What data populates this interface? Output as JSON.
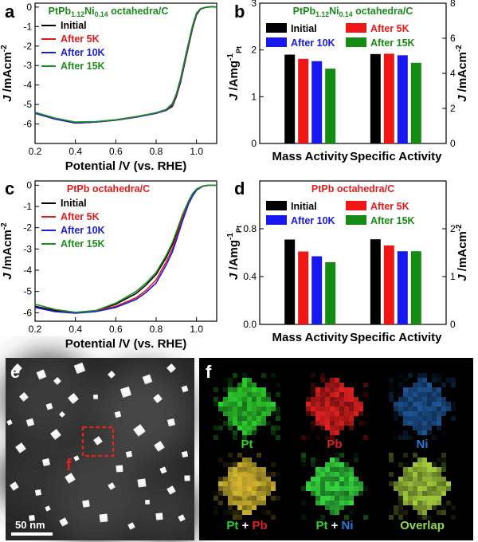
{
  "figure": {
    "panels": {
      "a": "a",
      "b": "b",
      "c": "c",
      "d": "d",
      "e": "e",
      "f": "f"
    }
  },
  "chart_data": [
    {
      "id": "a",
      "type": "line",
      "title": "PtPb1.12Ni0.14 octahedra/C",
      "title_parts": [
        "PtPb",
        "1.12",
        "Ni",
        "0.14",
        " octahedra/C"
      ],
      "title_color": "#1a8a1a",
      "xlabel": "Potential /V (vs. RHE)",
      "ylabel": "J /mAcm",
      "ylabel_sup": "-2",
      "xlim": [
        0.2,
        1.1
      ],
      "ylim": [
        -7,
        0.2
      ],
      "xticks": [
        0.2,
        0.4,
        0.6,
        0.8,
        1.0
      ],
      "xtick_labels": [
        "0.2",
        "0.4",
        "0.6",
        "0.8",
        "1.0"
      ],
      "yticks": [
        0,
        -1,
        -2,
        -3,
        -4,
        -5,
        -6
      ],
      "ytick_labels": [
        "0",
        "-1",
        "-2",
        "-3",
        "-4",
        "-5",
        "-6"
      ],
      "legend_placement": "top-left",
      "series": [
        {
          "name": "Initial",
          "color": "#000000",
          "x": [
            0.2,
            0.3,
            0.4,
            0.5,
            0.6,
            0.7,
            0.8,
            0.85,
            0.88,
            0.9,
            0.92,
            0.95,
            0.98,
            1.0,
            1.02,
            1.05,
            1.08,
            1.1
          ],
          "y": [
            -5.45,
            -5.75,
            -5.95,
            -5.9,
            -5.8,
            -5.65,
            -5.45,
            -5.3,
            -5.1,
            -4.6,
            -3.9,
            -2.5,
            -1.1,
            -0.4,
            -0.1,
            0.0,
            0.02,
            0.0
          ]
        },
        {
          "name": "After 5K",
          "color": "#e01b1b",
          "x": [
            0.2,
            0.3,
            0.4,
            0.5,
            0.6,
            0.7,
            0.8,
            0.85,
            0.88,
            0.9,
            0.92,
            0.95,
            0.98,
            1.0,
            1.02,
            1.05,
            1.08,
            1.1
          ],
          "y": [
            -5.45,
            -5.75,
            -5.95,
            -5.9,
            -5.8,
            -5.65,
            -5.45,
            -5.3,
            -5.05,
            -4.55,
            -3.85,
            -2.45,
            -1.05,
            -0.38,
            -0.1,
            0.0,
            0.02,
            0.0
          ]
        },
        {
          "name": "After 10K",
          "color": "#1c1cd6",
          "x": [
            0.2,
            0.3,
            0.4,
            0.5,
            0.6,
            0.7,
            0.8,
            0.85,
            0.88,
            0.9,
            0.92,
            0.95,
            0.98,
            1.0,
            1.02,
            1.05,
            1.08,
            1.1
          ],
          "y": [
            -5.45,
            -5.75,
            -5.95,
            -5.9,
            -5.8,
            -5.65,
            -5.45,
            -5.28,
            -5.0,
            -4.5,
            -3.8,
            -2.4,
            -1.0,
            -0.35,
            -0.09,
            0.0,
            0.02,
            0.0
          ]
        },
        {
          "name": "After 15K",
          "color": "#1e8f1e",
          "x": [
            0.2,
            0.3,
            0.4,
            0.5,
            0.6,
            0.7,
            0.8,
            0.85,
            0.88,
            0.9,
            0.92,
            0.95,
            0.98,
            1.0,
            1.02,
            1.05,
            1.08,
            1.1
          ],
          "y": [
            -5.4,
            -5.7,
            -5.9,
            -5.88,
            -5.78,
            -5.62,
            -5.42,
            -5.25,
            -4.95,
            -4.45,
            -3.7,
            -2.3,
            -0.95,
            -0.3,
            -0.08,
            0.0,
            0.02,
            0.0
          ]
        }
      ]
    },
    {
      "id": "b",
      "type": "bar",
      "title": "PtPb1.12Ni0.14 octahedra/C",
      "title_parts": [
        "PtPb",
        "1.12",
        "Ni",
        "0.14",
        " octahedra/C"
      ],
      "title_color": "#1a8a1a",
      "categories": [
        "Mass Activity",
        "Specific Activity"
      ],
      "ylabel_left": "J /Amg",
      "ylabel_left_sup": "-1",
      "ylabel_left_sub": "Pt",
      "ylabel_right": "J /mAcm",
      "ylabel_right_sup": "-2",
      "ylim_left": [
        0,
        3
      ],
      "ylim_right": [
        0,
        8
      ],
      "yticks_left": [
        0,
        1,
        2,
        3
      ],
      "ytick_labels_left": [
        "0",
        "1",
        "2",
        "3"
      ],
      "yticks_right": [
        0,
        2,
        4,
        6,
        8
      ],
      "ytick_labels_right": [
        "0",
        "2",
        "4",
        "6",
        "8"
      ],
      "legend_placement": "top",
      "series": [
        {
          "name": "Initial",
          "color": "#000000",
          "values": [
            1.9,
            5.1
          ],
          "axis": [
            "left",
            "right"
          ]
        },
        {
          "name": "After 5K",
          "color": "#f01616",
          "values": [
            1.81,
            5.12
          ],
          "axis": [
            "left",
            "right"
          ]
        },
        {
          "name": "After 10K",
          "color": "#1717f0",
          "values": [
            1.76,
            5.03
          ],
          "axis": [
            "left",
            "right"
          ]
        },
        {
          "name": "After 15K",
          "color": "#148c14",
          "values": [
            1.6,
            4.6
          ],
          "axis": [
            "left",
            "right"
          ]
        }
      ]
    },
    {
      "id": "c",
      "type": "line",
      "title": "PtPb octahedra/C",
      "title_parts": [
        "PtPb octahedra/C"
      ],
      "title_color": "#e01b1b",
      "xlabel": "Potential /V (vs. RHE)",
      "ylabel": "J /mAcm",
      "ylabel_sup": "-2",
      "xlim": [
        0.2,
        1.1
      ],
      "ylim": [
        -6.4,
        0.2
      ],
      "xticks": [
        0.2,
        0.4,
        0.6,
        0.8,
        1.0
      ],
      "xtick_labels": [
        "0.2",
        "0.4",
        "0.6",
        "0.8",
        "1.0"
      ],
      "yticks": [
        0,
        -1,
        -2,
        -3,
        -4,
        -5,
        -6
      ],
      "ytick_labels": [
        "0",
        "-1",
        "-2",
        "-3",
        "-4",
        "-5",
        "-6"
      ],
      "legend_placement": "top-left",
      "series": [
        {
          "name": "Initial",
          "color": "#000000",
          "x": [
            0.2,
            0.3,
            0.4,
            0.5,
            0.6,
            0.7,
            0.75,
            0.8,
            0.85,
            0.88,
            0.9,
            0.93,
            0.96,
            0.98,
            1.0,
            1.03,
            1.06,
            1.1
          ],
          "y": [
            -5.7,
            -5.9,
            -6.0,
            -5.9,
            -5.6,
            -5.1,
            -4.7,
            -4.2,
            -3.4,
            -2.8,
            -2.3,
            -1.5,
            -0.8,
            -0.45,
            -0.2,
            -0.05,
            0.0,
            0.0
          ]
        },
        {
          "name": "After 5K",
          "color": "#e01b1b",
          "x": [
            0.2,
            0.3,
            0.4,
            0.5,
            0.6,
            0.7,
            0.75,
            0.8,
            0.85,
            0.88,
            0.9,
            0.93,
            0.96,
            0.98,
            1.0,
            1.03,
            1.06,
            1.1
          ],
          "y": [
            -5.75,
            -5.95,
            -6.0,
            -5.92,
            -5.7,
            -5.3,
            -4.95,
            -4.45,
            -3.6,
            -3.0,
            -2.45,
            -1.6,
            -0.85,
            -0.5,
            -0.22,
            -0.05,
            0.0,
            0.0
          ]
        },
        {
          "name": "After 10K",
          "color": "#1c1cd6",
          "x": [
            0.2,
            0.3,
            0.4,
            0.5,
            0.6,
            0.7,
            0.75,
            0.8,
            0.85,
            0.88,
            0.9,
            0.93,
            0.96,
            0.98,
            1.0,
            1.03,
            1.06,
            1.1
          ],
          "y": [
            -5.75,
            -5.95,
            -6.02,
            -5.95,
            -5.75,
            -5.38,
            -5.05,
            -4.6,
            -3.75,
            -3.15,
            -2.6,
            -1.7,
            -0.9,
            -0.52,
            -0.23,
            -0.05,
            0.0,
            0.0
          ]
        },
        {
          "name": "After 15K",
          "color": "#1e8f1e",
          "x": [
            0.2,
            0.3,
            0.4,
            0.5,
            0.6,
            0.7,
            0.75,
            0.8,
            0.85,
            0.88,
            0.9,
            0.93,
            0.96,
            0.98,
            1.0,
            1.03,
            1.06,
            1.1
          ],
          "y": [
            -5.6,
            -5.85,
            -5.98,
            -5.9,
            -5.55,
            -5.0,
            -4.6,
            -4.1,
            -3.3,
            -2.7,
            -2.2,
            -1.4,
            -0.75,
            -0.4,
            -0.18,
            -0.04,
            0.0,
            0.0
          ]
        }
      ]
    },
    {
      "id": "d",
      "type": "bar",
      "title": "PtPb octahedra/C",
      "title_parts": [
        "PtPb octahedra/C"
      ],
      "title_color": "#e01b1b",
      "categories": [
        "Mass Activity",
        "Specific Activity"
      ],
      "ylabel_left": "J /Amg",
      "ylabel_left_sup": "-1",
      "ylabel_left_sub": "Pt",
      "ylabel_right": "J /mAcm",
      "ylabel_right_sup": "-2",
      "ylim_left": [
        0,
        1.2
      ],
      "ylim_right": [
        0,
        3
      ],
      "yticks_left": [
        0.0,
        0.4,
        0.8
      ],
      "ytick_labels_left": [
        "0.0",
        "0.4",
        "0.8"
      ],
      "yticks_right": [
        0,
        1,
        2
      ],
      "ytick_labels_right": [
        "0",
        "1",
        "2"
      ],
      "legend_placement": "top",
      "series": [
        {
          "name": "Initial",
          "color": "#000000",
          "values": [
            0.71,
            1.78
          ],
          "axis": [
            "left",
            "right"
          ]
        },
        {
          "name": "After 5K",
          "color": "#f01616",
          "values": [
            0.61,
            1.65
          ],
          "axis": [
            "left",
            "right"
          ]
        },
        {
          "name": "After 10K",
          "color": "#1717f0",
          "values": [
            0.57,
            1.53
          ],
          "axis": [
            "left",
            "right"
          ]
        },
        {
          "name": "After 15K",
          "color": "#148c14",
          "values": [
            0.52,
            1.53
          ],
          "axis": [
            "left",
            "right"
          ]
        }
      ]
    }
  ],
  "image_e": {
    "scale_bar_label": "50 nm",
    "marker_label": "f"
  },
  "image_f": {
    "maps": [
      {
        "label": "Pt",
        "color": "#2fd12f",
        "label_parts": [
          [
            "Pt",
            "#2fd12f"
          ]
        ]
      },
      {
        "label": "Pb",
        "color": "#e22020",
        "label_parts": [
          [
            "Pb",
            "#e22020"
          ]
        ]
      },
      {
        "label": "Ni",
        "color": "#2a7bd8",
        "label_parts": [
          [
            "Ni",
            "#2a7bd8"
          ]
        ]
      },
      {
        "label": "Pt + Pb",
        "color": "#c8b030",
        "label_parts": [
          [
            "Pt",
            "#2fd12f"
          ],
          [
            " + ",
            "#ffffff"
          ],
          [
            "Pb",
            "#e22020"
          ]
        ]
      },
      {
        "label": "Pt + Ni",
        "color": "#35d640",
        "label_parts": [
          [
            "Pt",
            "#2fd12f"
          ],
          [
            " + ",
            "#ffffff"
          ],
          [
            "Ni",
            "#2a7bd8"
          ]
        ]
      },
      {
        "label": "Overlap",
        "color": "#a8d040",
        "label_parts": [
          [
            "Overlap",
            "#8ed84a"
          ]
        ]
      }
    ]
  }
}
